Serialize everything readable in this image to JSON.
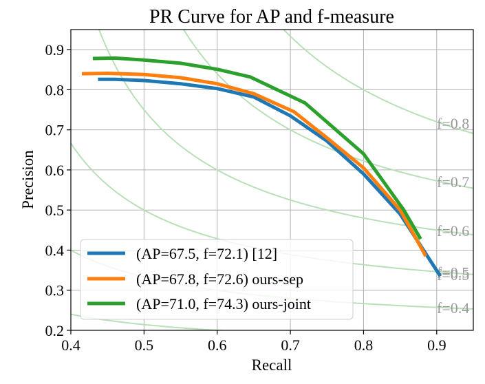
{
  "chart_data": {
    "type": "line",
    "title": "PR Curve for AP and f-measure",
    "xlabel": "Recall",
    "ylabel": "Precision",
    "xlim": [
      0.4,
      0.95
    ],
    "ylim": [
      0.2,
      0.95
    ],
    "xticks": [
      "0.4",
      "0.5",
      "0.6",
      "0.7",
      "0.8",
      "0.9"
    ],
    "yticks": [
      "0.2",
      "0.3",
      "0.4",
      "0.5",
      "0.6",
      "0.7",
      "0.8",
      "0.9"
    ],
    "grid": true,
    "legend_position": "lower-left",
    "iso_f_curves": [
      {
        "f": 0.8,
        "label": "f=0.8"
      },
      {
        "f": 0.7,
        "label": "f=0.7"
      },
      {
        "f": 0.6,
        "label": "f=0.6"
      },
      {
        "f": 0.5,
        "label": "f=0.5"
      },
      {
        "f": 0.4,
        "label": "f=0.4"
      },
      {
        "f": 0.3,
        "label": ""
      }
    ],
    "iso_f_extra_label": "f=0.5",
    "iso_color": "#b9dfb9",
    "iso_label_color": "#999999",
    "series": [
      {
        "name": "(AP=67.5, f=72.1) [12]",
        "color": "#1f77b4",
        "x": [
          0.437,
          0.46,
          0.5,
          0.55,
          0.6,
          0.65,
          0.7,
          0.75,
          0.8,
          0.85,
          0.905
        ],
        "y": [
          0.826,
          0.826,
          0.823,
          0.815,
          0.803,
          0.782,
          0.735,
          0.672,
          0.59,
          0.49,
          0.335
        ]
      },
      {
        "name": "(AP=67.8, f=72.6) ours-sep",
        "color": "#ff7f0e",
        "x": [
          0.415,
          0.45,
          0.5,
          0.55,
          0.6,
          0.65,
          0.705,
          0.75,
          0.8,
          0.85,
          0.885
        ],
        "y": [
          0.84,
          0.841,
          0.838,
          0.83,
          0.815,
          0.79,
          0.745,
          0.68,
          0.605,
          0.5,
          0.385
        ]
      },
      {
        "name": "(AP=71.0, f=74.3) ours-joint",
        "color": "#2ca02c",
        "x": [
          0.43,
          0.46,
          0.5,
          0.55,
          0.6,
          0.645,
          0.72,
          0.8,
          0.855,
          0.878
        ],
        "y": [
          0.878,
          0.879,
          0.874,
          0.866,
          0.851,
          0.832,
          0.767,
          0.64,
          0.5,
          0.428
        ]
      }
    ]
  }
}
